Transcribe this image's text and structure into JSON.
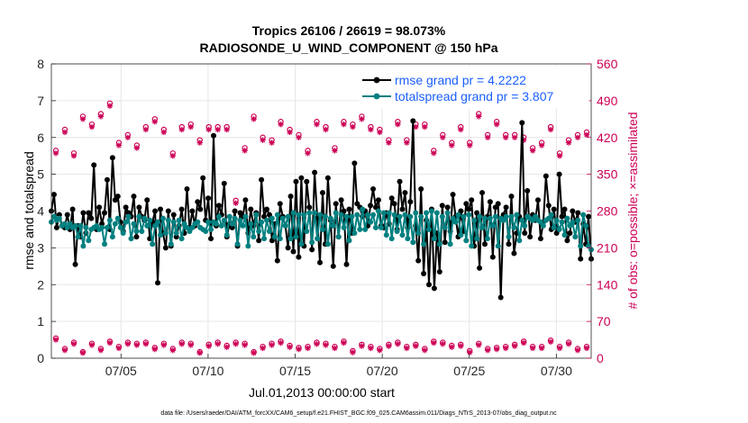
{
  "chart_data": {
    "type": "line",
    "title": "Tropics 26106 / 26619 = 98.073%",
    "subtitle": "RADIOSONDE_U_WIND_COMPONENT @ 150 hPa",
    "xlabel": "Jul.01,2013 00:00:00 start",
    "ylabel_left": "rmse and totalspread",
    "ylabel_right": "# of obs: o=possible; ×=assimilated",
    "x_ticks": [
      "07/05",
      "07/10",
      "07/15",
      "07/20",
      "07/25",
      "07/30"
    ],
    "x_tick_days": [
      5,
      10,
      15,
      20,
      25,
      30
    ],
    "xlim_days": [
      1,
      32
    ],
    "ylim_left": [
      0,
      8
    ],
    "y_ticks_left": [
      "0",
      "1",
      "2",
      "3",
      "4",
      "5",
      "6",
      "7",
      "8"
    ],
    "ylim_right": [
      0,
      560
    ],
    "y_ticks_right": [
      "0",
      "70",
      "140",
      "210",
      "280",
      "350",
      "420",
      "490",
      "560"
    ],
    "grid": true,
    "legend_position": "top-right",
    "colors": {
      "rmse": "#000000",
      "spread": "#008080",
      "obs": "#cc0055"
    },
    "footnote": "data file: /Users/raeder/DAI/ATM_forcXX/CAM6_setup/f.e21.FHIST_BGC.f09_025.CAM6assim.011/Diags_NTrS_2013-07/obs_diag_output.nc",
    "series": [
      {
        "name": "rmse grand pr = 4.2222",
        "axis": "left",
        "values": [
          4.0,
          4.45,
          3.55,
          3.9,
          3.6,
          3.55,
          3.9,
          3.5,
          4.05,
          2.55,
          3.6,
          3.3,
          3.95,
          3.4,
          3.95,
          3.8,
          5.25,
          3.5,
          4.1,
          3.65,
          3.95,
          4.85,
          3.5,
          5.45,
          4.3,
          4.4,
          3.7,
          3.45,
          4.1,
          3.95,
          3.85,
          4.4,
          3.3,
          4.1,
          3.85,
          3.75,
          4.3,
          3.25,
          3.7,
          4.0,
          2.05,
          4.05,
          3.4,
          3.0,
          4.0,
          3.05,
          3.9,
          3.3,
          3.6,
          4.05,
          3.4,
          4.6,
          3.5,
          4.0,
          3.6,
          4.25,
          4.05,
          4.9,
          3.75,
          4.35,
          3.25,
          6.05,
          3.6,
          4.15,
          3.9,
          4.75,
          3.3,
          3.65,
          3.55,
          4.0,
          3.05,
          3.95,
          3.85,
          4.3,
          3.4,
          4.05,
          3.6,
          3.95,
          3.2,
          4.85,
          3.85,
          4.05,
          3.9,
          3.2,
          3.65,
          2.65,
          4.2,
          3.85,
          3.6,
          3.0,
          4.4,
          2.9,
          4.8,
          2.75,
          4.9,
          3.05,
          4.8,
          4.1,
          2.95,
          5.05,
          3.8,
          2.6,
          4.5,
          3.1,
          4.9,
          3.75,
          2.5,
          4.2,
          3.3,
          4.3,
          4.0,
          2.55,
          4.05,
          3.4,
          5.3,
          4.2,
          4.1,
          3.85,
          4.0,
          3.6,
          4.15,
          4.6,
          4.1,
          4.3,
          3.6,
          3.55,
          3.95,
          3.65,
          4.35,
          4.2,
          3.5,
          4.8,
          4.05,
          4.5,
          3.55,
          4.25,
          6.45,
          3.6,
          2.65,
          4.6,
          2.3,
          3.75,
          2.0,
          4.05,
          1.9,
          3.4,
          2.35,
          4.15,
          3.15,
          4.1,
          3.45,
          4.45,
          3.85,
          3.3,
          4.0,
          3.45,
          4.2,
          4.05,
          4.3,
          3.05,
          3.95,
          2.45,
          4.5,
          3.1,
          3.85,
          4.25,
          2.75,
          4.1,
          4.2,
          1.65,
          3.9,
          4.1,
          3.1,
          4.4,
          2.85,
          3.4,
          3.85,
          6.4,
          3.4,
          4.55,
          3.3,
          3.9,
          3.75,
          4.3,
          3.25,
          3.7,
          4.95,
          4.15,
          3.5,
          4.05,
          3.4,
          5.0,
          3.85,
          4.05,
          3.2,
          3.4,
          4.0,
          3.7,
          3.95,
          2.7,
          3.65,
          3.1,
          3.85,
          2.7
        ]
      },
      {
        "name": "totalspread grand pr = 3.807",
        "axis": "left",
        "values": [
          3.7,
          3.85,
          3.75,
          3.8,
          3.6,
          3.65,
          3.55,
          3.65,
          3.55,
          3.6,
          3.3,
          3.6,
          3.05,
          3.55,
          3.2,
          3.5,
          3.55,
          3.6,
          3.5,
          3.55,
          3.1,
          3.55,
          3.75,
          3.3,
          3.65,
          3.8,
          3.55,
          3.4,
          3.7,
          3.85,
          3.25,
          3.65,
          3.45,
          3.85,
          3.45,
          3.8,
          3.6,
          3.75,
          3.1,
          3.6,
          3.7,
          3.35,
          3.8,
          3.4,
          3.75,
          3.1,
          3.7,
          3.4,
          3.75,
          3.25,
          3.65,
          3.55,
          3.45,
          3.55,
          3.65,
          3.7,
          3.55,
          3.5,
          3.45,
          3.7,
          3.5,
          3.7,
          3.65,
          3.85,
          3.6,
          3.75,
          3.35,
          3.85,
          3.65,
          3.8,
          3.1,
          3.75,
          3.6,
          3.85,
          3.05,
          3.65,
          3.3,
          3.9,
          3.45,
          3.7,
          3.25,
          3.75,
          3.45,
          3.8,
          3.3,
          3.9,
          3.25,
          3.8,
          3.6,
          3.85,
          3.25,
          3.95,
          3.3,
          3.9,
          3.1,
          3.9,
          3.45,
          3.95,
          3.15,
          3.95,
          3.25,
          3.9,
          3.5,
          3.85,
          3.1,
          3.8,
          3.6,
          3.95,
          3.3,
          3.9,
          3.55,
          3.85,
          3.2,
          3.85,
          3.4,
          3.9,
          3.5,
          4.05,
          3.5,
          3.9,
          3.7,
          3.9,
          3.55,
          4.0,
          3.55,
          3.95,
          3.35,
          3.95,
          3.25,
          3.9,
          3.45,
          3.85,
          3.35,
          3.9,
          3.25,
          3.85,
          3.15,
          3.95,
          3.4,
          3.85,
          3.1,
          3.95,
          3.5,
          4.0,
          3.25,
          3.95,
          3.1,
          3.85,
          3.55,
          3.95,
          3.1,
          3.8,
          3.7,
          3.9,
          3.35,
          3.85,
          3.2,
          3.9,
          3.05,
          3.75,
          3.25,
          3.85,
          3.55,
          3.8,
          3.25,
          3.8,
          3.6,
          3.85,
          3.05,
          3.8,
          3.75,
          3.85,
          3.3,
          3.85,
          3.55,
          3.9,
          3.2,
          3.75,
          3.6,
          3.85,
          3.8,
          3.75,
          3.85,
          3.75,
          3.7,
          3.6,
          3.75,
          3.8,
          3.9,
          3.55,
          3.75,
          3.5,
          3.7,
          3.35,
          3.8,
          3.6,
          3.7,
          3.3,
          3.75,
          3.05,
          3.9,
          3.6,
          3.05,
          2.95
        ]
      }
    ],
    "obs_possible_hi": [
      395,
      435,
      390,
      460,
      445,
      465,
      485,
      410,
      425,
      405,
      440,
      455,
      435,
      390,
      440,
      445,
      415,
      440,
      440,
      440,
      300,
      400,
      460,
      420,
      415,
      450,
      435,
      425,
      395,
      450,
      440,
      400,
      450,
      445,
      460,
      440,
      435,
      415,
      450,
      415,
      445,
      445,
      395,
      425,
      410,
      440,
      410,
      465,
      425,
      450,
      425,
      425,
      420,
      400,
      410,
      440,
      390,
      415,
      425,
      430
    ],
    "obs_assimilated_hi": [
      390,
      430,
      385,
      455,
      440,
      460,
      480,
      405,
      420,
      400,
      435,
      450,
      430,
      385,
      435,
      440,
      410,
      435,
      435,
      435,
      295,
      395,
      455,
      415,
      410,
      445,
      430,
      420,
      390,
      445,
      435,
      395,
      445,
      440,
      455,
      435,
      430,
      410,
      445,
      410,
      440,
      440,
      390,
      420,
      405,
      435,
      405,
      460,
      420,
      445,
      420,
      420,
      415,
      395,
      405,
      435,
      385,
      410,
      420,
      425
    ],
    "obs_possible_lo": [
      38,
      18,
      30,
      12,
      28,
      18,
      32,
      22,
      30,
      28,
      30,
      20,
      28,
      18,
      30,
      28,
      12,
      26,
      30,
      24,
      30,
      28,
      12,
      22,
      28,
      32,
      24,
      20,
      22,
      30,
      28,
      22,
      32,
      14,
      26,
      22,
      18,
      26,
      30,
      22,
      26,
      18,
      32,
      30,
      24,
      26,
      14,
      28,
      18,
      20,
      22,
      26,
      32,
      22,
      22,
      34,
      22,
      30,
      18,
      22
    ],
    "obs_assimilated_lo": [
      35,
      15,
      27,
      10,
      25,
      15,
      29,
      19,
      27,
      25,
      27,
      17,
      25,
      15,
      27,
      25,
      10,
      23,
      27,
      21,
      27,
      25,
      10,
      19,
      25,
      29,
      21,
      17,
      19,
      27,
      25,
      19,
      29,
      11,
      23,
      19,
      15,
      23,
      27,
      19,
      23,
      15,
      29,
      27,
      21,
      23,
      11,
      25,
      15,
      17,
      19,
      23,
      29,
      19,
      19,
      31,
      19,
      27,
      15,
      19
    ]
  }
}
